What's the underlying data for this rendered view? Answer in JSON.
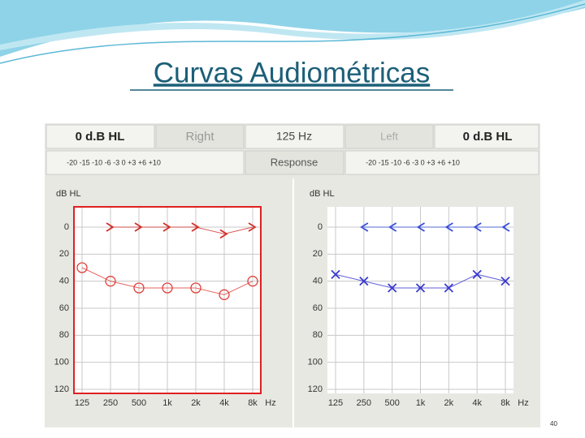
{
  "slide": {
    "title": "Curvas Audiométricas",
    "page_number": "40"
  },
  "header": {
    "cells": [
      "0 d.B HL",
      "Right",
      "125 Hz",
      "Left",
      "0 d.B HL"
    ],
    "scale_right": "-20 -15 -10 -6 -3 0 +3 +6 +10",
    "response": "Response",
    "scale_left": "-20 -15 -10 -6 -3 0 +3 +6 +10"
  },
  "chart_data": [
    {
      "type": "line",
      "ylabel": "dB HL",
      "xlabel": "Hz",
      "y_inverted": true,
      "border_color": "#e02020",
      "categories": [
        "125",
        "250",
        "500",
        "1k",
        "2k",
        "4k",
        "8k"
      ],
      "ylim": [
        -15,
        123
      ],
      "yticks": [
        0,
        20,
        40,
        60,
        80,
        100,
        120
      ],
      "grid": true,
      "series": [
        {
          "color": "#e0403a",
          "marker": "circle",
          "values": [
            30,
            40,
            45,
            45,
            45,
            50,
            40
          ]
        },
        {
          "color": "#d0302a",
          "marker": "arrow-right",
          "values": [
            null,
            0,
            0,
            0,
            0,
            5,
            0
          ]
        }
      ]
    },
    {
      "type": "line",
      "ylabel": "dB HL",
      "xlabel": "Hz",
      "y_inverted": true,
      "border_color": null,
      "categories": [
        "125",
        "250",
        "500",
        "1k",
        "2k",
        "4k",
        "8k"
      ],
      "ylim": [
        -15,
        123
      ],
      "yticks": [
        0,
        20,
        40,
        60,
        80,
        100,
        120
      ],
      "grid": true,
      "series": [
        {
          "color": "#3a3ad0",
          "marker": "x",
          "values": [
            35,
            40,
            45,
            45,
            45,
            35,
            40
          ]
        },
        {
          "color": "#3a50d8",
          "marker": "arrow-left",
          "values": [
            null,
            0,
            0,
            0,
            0,
            0,
            0
          ]
        }
      ]
    }
  ]
}
